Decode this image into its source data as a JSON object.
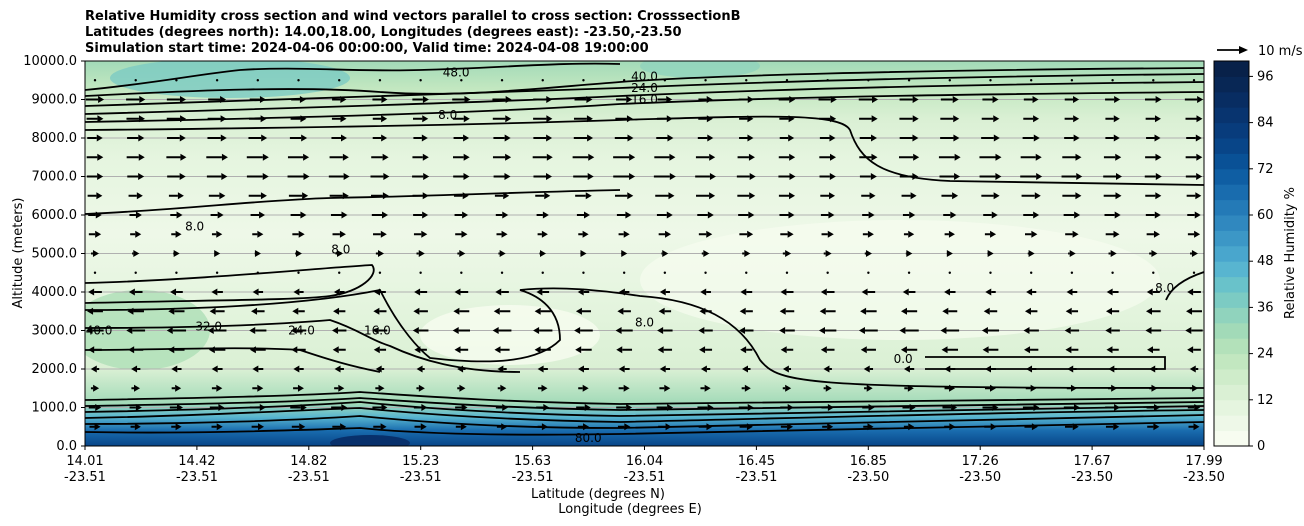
{
  "chart_data": {
    "type": "heatmap",
    "title_lines": [
      "Relative Humidity cross section and wind vectors parallel to cross section: CrosssectionB",
      "Latitudes (degrees north): 14.00,18.00, Longitudes (degrees east): -23.50,-23.50",
      "Simulation start time: 2024-04-06 00:00:00, Valid time: 2024-04-08 19:00:00"
    ],
    "ylabel": "Altitude (meters)",
    "xlabel": "Latitude (degrees N)",
    "xlabel2": "Longitude (degrees E)",
    "ylim": [
      0,
      10000
    ],
    "y_ticks": [
      0,
      1000,
      2000,
      3000,
      4000,
      5000,
      6000,
      7000,
      8000,
      9000,
      10000
    ],
    "y_tick_labels": [
      "0.0",
      "1000.0",
      "2000.0",
      "3000.0",
      "4000.0",
      "5000.0",
      "6000.0",
      "7000.0",
      "8000.0",
      "9000.0",
      "10000.0"
    ],
    "x_ticks": [
      {
        "lat": "14.01",
        "lon": "-23.51"
      },
      {
        "lat": "14.42",
        "lon": "-23.51"
      },
      {
        "lat": "14.82",
        "lon": "-23.51"
      },
      {
        "lat": "15.23",
        "lon": "-23.51"
      },
      {
        "lat": "15.63",
        "lon": "-23.51"
      },
      {
        "lat": "16.04",
        "lon": "-23.51"
      },
      {
        "lat": "16.45",
        "lon": "-23.51"
      },
      {
        "lat": "16.85",
        "lon": "-23.50"
      },
      {
        "lat": "17.26",
        "lon": "-23.50"
      },
      {
        "lat": "17.67",
        "lon": "-23.50"
      },
      {
        "lat": "17.99",
        "lon": "-23.50"
      }
    ],
    "grid": "horizontal",
    "colorbar": {
      "label": "Relative Humidity %",
      "min": 0,
      "max": 100,
      "step": 4,
      "ticks": [
        0,
        12,
        24,
        36,
        48,
        60,
        72,
        84,
        96
      ],
      "colors": [
        "#f7fcf0",
        "#eef8e8",
        "#e5f5df",
        "#daf0d4",
        "#cfecca",
        "#c2e7c0",
        "#b3e1ba",
        "#a2dab8",
        "#90d3bd",
        "#7ccbc3",
        "#69c2ca",
        "#58b5d0",
        "#49a6cd",
        "#3c97c6",
        "#3088bf",
        "#247ab7",
        "#196cae",
        "#0f5ea3",
        "#095196",
        "#084588",
        "#083c7c",
        "#08346f",
        "#082d62",
        "#082755",
        "#082149"
      ]
    },
    "wind_key": {
      "label": "10 m/s",
      "value": 10
    },
    "wind_rows": [
      {
        "alt": 9500,
        "u": 0
      },
      {
        "alt": 9000,
        "u": 7
      },
      {
        "alt": 8500,
        "u": 7
      },
      {
        "alt": 8000,
        "u": 7
      },
      {
        "alt": 7500,
        "u": 8
      },
      {
        "alt": 7000,
        "u": 8
      },
      {
        "alt": 6500,
        "u": 7
      },
      {
        "alt": 6000,
        "u": 6
      },
      {
        "alt": 5500,
        "u": 5
      },
      {
        "alt": 5000,
        "u": 3
      },
      {
        "alt": 4500,
        "u": -1
      },
      {
        "alt": 4000,
        "u": -5
      },
      {
        "alt": 3500,
        "u": -6
      },
      {
        "alt": 3000,
        "u": -7
      },
      {
        "alt": 2500,
        "u": -6
      },
      {
        "alt": 2000,
        "u": -4
      },
      {
        "alt": 1500,
        "u": 4
      },
      {
        "alt": 1000,
        "u": 6
      },
      {
        "alt": 500,
        "u": 5
      }
    ],
    "contour_labels": [
      {
        "text": "8.0",
        "lat": 15.3,
        "alt": 8500
      },
      {
        "text": "8.0",
        "lat": 14.4,
        "alt": 5600
      },
      {
        "text": "8.0",
        "lat": 14.92,
        "alt": 5000
      },
      {
        "text": "8.0",
        "lat": 17.85,
        "alt": 4000
      },
      {
        "text": "8.0",
        "lat": 16.0,
        "alt": 3100
      },
      {
        "text": "16.0",
        "lat": 16.0,
        "alt": 8900
      },
      {
        "text": "16.0",
        "lat": 15.05,
        "alt": 2900
      },
      {
        "text": "24.0",
        "lat": 16.0,
        "alt": 9200
      },
      {
        "text": "24.0",
        "lat": 14.78,
        "alt": 2900
      },
      {
        "text": "32.0",
        "lat": 14.45,
        "alt": 3000
      },
      {
        "text": "40.0",
        "lat": 16.0,
        "alt": 9500
      },
      {
        "text": "40.0",
        "lat": 14.06,
        "alt": 2900
      },
      {
        "text": "48.0",
        "lat": 15.33,
        "alt": 9600
      },
      {
        "text": "80.0",
        "lat": 15.8,
        "alt": 100
      },
      {
        "text": "0.0",
        "lat": 16.92,
        "alt": 2150
      }
    ]
  }
}
